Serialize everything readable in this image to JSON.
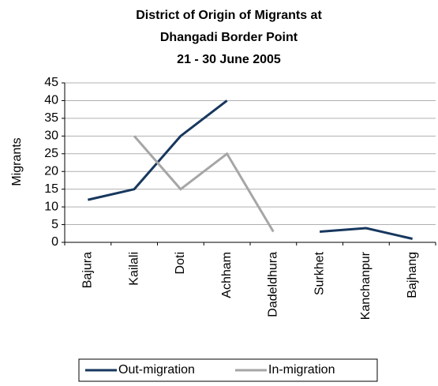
{
  "chart_data": {
    "type": "line",
    "title": [
      "District of Origin of Migrants at",
      "Dhangadi Border Point",
      "21 - 30 June 2005"
    ],
    "y_label": "Migrants",
    "categories": [
      "Bajura",
      "Kailali",
      "Doti",
      "Achham",
      "Dadeldhura",
      "Surkhet",
      "Kanchanpur",
      "Bajhang"
    ],
    "series": [
      {
        "name": "Out-migration",
        "color": "#17375e",
        "values": [
          12,
          15,
          30,
          40,
          null,
          3,
          4,
          1
        ]
      },
      {
        "name": "In-migration",
        "color": "#a6a6a6",
        "values": [
          null,
          30,
          15,
          25,
          3,
          null,
          null,
          null
        ]
      }
    ],
    "ylim": [
      0,
      45
    ],
    "yticks": [
      0,
      5,
      10,
      15,
      20,
      25,
      30,
      35,
      40,
      45
    ],
    "grid": true,
    "legend": "bottom"
  }
}
